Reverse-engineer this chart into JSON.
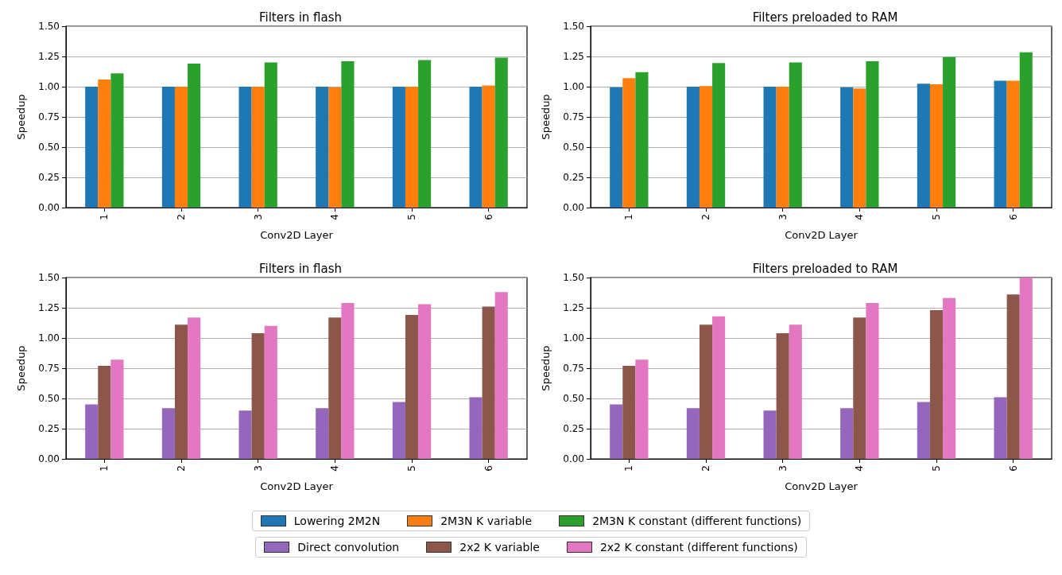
{
  "chart_data": [
    {
      "type": "bar",
      "title": "Filters in flash",
      "xlabel": "Conv2D Layer",
      "ylabel": "Speedup",
      "categories": [
        "1",
        "2",
        "3",
        "4",
        "5",
        "6"
      ],
      "series": [
        {
          "name": "Lowering 2M2N",
          "color": "#1f77b4",
          "values": [
            1.0,
            1.0,
            1.0,
            1.0,
            1.0,
            1.0
          ]
        },
        {
          "name": "2M3N K variable",
          "color": "#ff7f0e",
          "values": [
            1.06,
            1.0,
            1.0,
            0.995,
            1.0,
            1.01
          ]
        },
        {
          "name": "2M3N K constant (different functions)",
          "color": "#2ca02c",
          "values": [
            1.11,
            1.19,
            1.2,
            1.21,
            1.22,
            1.24
          ]
        }
      ],
      "ylim": [
        0,
        1.5
      ],
      "yticks": [
        {
          "value": 0,
          "label": "0.00"
        },
        {
          "value": 0.25,
          "label": "0.25"
        },
        {
          "value": 0.5,
          "label": "0.50"
        },
        {
          "value": 0.75,
          "label": "0.75"
        },
        {
          "value": 1,
          "label": "1.00"
        },
        {
          "value": 1.25,
          "label": "1.25"
        },
        {
          "value": 1.5,
          "label": "1.50"
        }
      ],
      "grid": "y",
      "legend": "bottom"
    },
    {
      "type": "bar",
      "title": "Filters preloaded to RAM",
      "xlabel": "Conv2D Layer",
      "ylabel": "Speedup",
      "categories": [
        "1",
        "2",
        "3",
        "4",
        "5",
        "6"
      ],
      "series": [
        {
          "name": "Lowering 2M2N",
          "color": "#1f77b4",
          "values": [
            0.995,
            1.0,
            1.0,
            0.995,
            1.025,
            1.05
          ]
        },
        {
          "name": "2M3N K variable",
          "color": "#ff7f0e",
          "values": [
            1.07,
            1.005,
            1.0,
            0.985,
            1.02,
            1.05
          ]
        },
        {
          "name": "2M3N K constant (different functions)",
          "color": "#2ca02c",
          "values": [
            1.12,
            1.195,
            1.2,
            1.21,
            1.245,
            1.285
          ]
        }
      ],
      "ylim": [
        0,
        1.5
      ],
      "yticks": [
        {
          "value": 0,
          "label": "0.00"
        },
        {
          "value": 0.25,
          "label": "0.25"
        },
        {
          "value": 0.5,
          "label": "0.50"
        },
        {
          "value": 0.75,
          "label": "0.75"
        },
        {
          "value": 1,
          "label": "1.00"
        },
        {
          "value": 1.25,
          "label": "1.25"
        },
        {
          "value": 1.5,
          "label": "1.50"
        }
      ],
      "grid": "y",
      "legend": "bottom"
    },
    {
      "type": "bar",
      "title": "Filters in flash",
      "xlabel": "Conv2D Layer",
      "ylabel": "Speedup",
      "categories": [
        "1",
        "2",
        "3",
        "4",
        "5",
        "6"
      ],
      "series": [
        {
          "name": "Direct convolution",
          "color": "#9467bd",
          "values": [
            0.45,
            0.42,
            0.4,
            0.42,
            0.47,
            0.51
          ]
        },
        {
          "name": "2x2 K variable",
          "color": "#8c564b",
          "values": [
            0.77,
            1.11,
            1.04,
            1.17,
            1.19,
            1.26
          ]
        },
        {
          "name": "2x2 K constant (different functions)",
          "color": "#e377c2",
          "values": [
            0.82,
            1.17,
            1.1,
            1.29,
            1.28,
            1.38
          ]
        }
      ],
      "ylim": [
        0,
        1.5
      ],
      "yticks": [
        {
          "value": 0,
          "label": "0.00"
        },
        {
          "value": 0.25,
          "label": "0.25"
        },
        {
          "value": 0.5,
          "label": "0.50"
        },
        {
          "value": 0.75,
          "label": "0.75"
        },
        {
          "value": 1,
          "label": "1.00"
        },
        {
          "value": 1.25,
          "label": "1.25"
        },
        {
          "value": 1.5,
          "label": "1.50"
        }
      ],
      "grid": "y",
      "legend": "bottom"
    },
    {
      "type": "bar",
      "title": "Filters preloaded to RAM",
      "xlabel": "Conv2D Layer",
      "ylabel": "Speedup",
      "categories": [
        "1",
        "2",
        "3",
        "4",
        "5",
        "6"
      ],
      "series": [
        {
          "name": "Direct convolution",
          "color": "#9467bd",
          "values": [
            0.45,
            0.42,
            0.4,
            0.42,
            0.47,
            0.51
          ]
        },
        {
          "name": "2x2 K variable",
          "color": "#8c564b",
          "values": [
            0.77,
            1.11,
            1.04,
            1.17,
            1.23,
            1.36
          ]
        },
        {
          "name": "2x2 K constant (different functions)",
          "color": "#e377c2",
          "values": [
            0.82,
            1.18,
            1.11,
            1.29,
            1.33,
            1.5
          ]
        }
      ],
      "ylim": [
        0,
        1.5
      ],
      "yticks": [
        {
          "value": 0,
          "label": "0.00"
        },
        {
          "value": 0.25,
          "label": "0.25"
        },
        {
          "value": 0.5,
          "label": "0.50"
        },
        {
          "value": 0.75,
          "label": "0.75"
        },
        {
          "value": 1,
          "label": "1.00"
        },
        {
          "value": 1.25,
          "label": "1.25"
        },
        {
          "value": 1.5,
          "label": "1.50"
        }
      ],
      "grid": "y",
      "legend": "bottom"
    }
  ]
}
